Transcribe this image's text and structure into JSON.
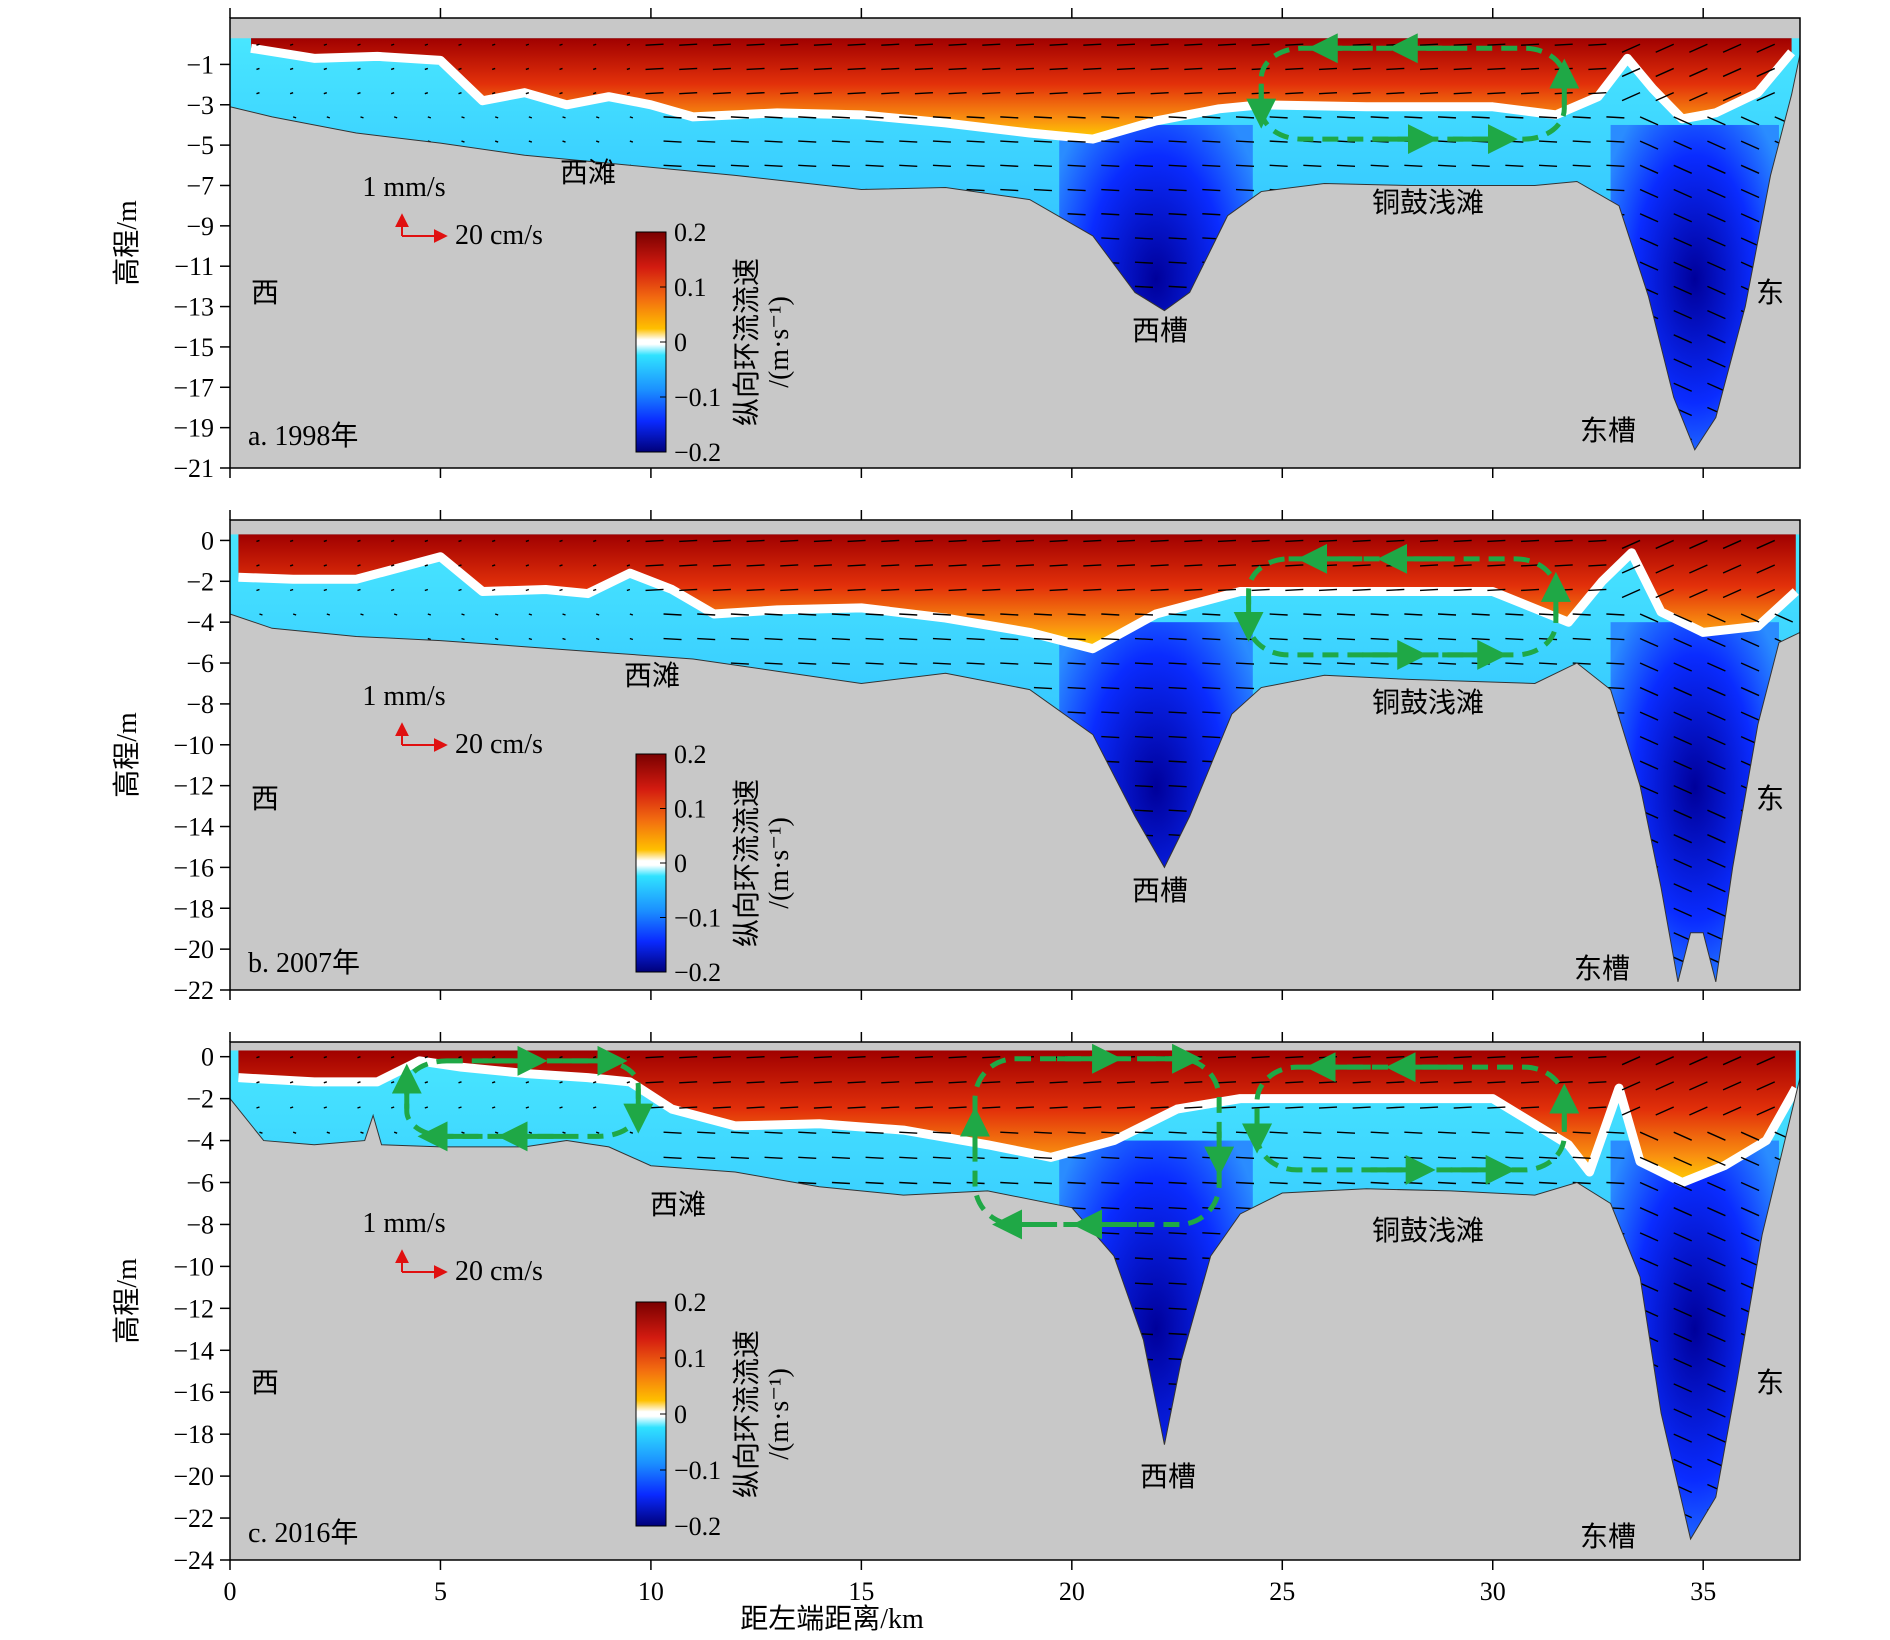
{
  "chart_data": [
    {
      "type": "contour",
      "panel_label": "a. 1998年",
      "ylabel": "高程/m",
      "xlabel": "",
      "xlim": [
        0,
        37.3
      ],
      "ylim": [
        -21,
        1.3
      ],
      "yticks": [
        -1,
        -3,
        -5,
        -7,
        -9,
        -11,
        -13,
        -15,
        -17,
        -19,
        -21
      ],
      "xticks": [
        0,
        5,
        10,
        15,
        20,
        25,
        30,
        35
      ],
      "colorbar": {
        "label": "纵向环流流速\n/(m·s⁻¹)",
        "range": [
          -0.2,
          0.2
        ],
        "ticks": [
          "0.2",
          "0.1",
          "0",
          "−0.1",
          "−0.2"
        ]
      },
      "vector_scale": {
        "vertical": "1 mm/s",
        "horizontal": "20 cm/s"
      },
      "annotations": {
        "west": "西",
        "east": "东",
        "west_shoal": "西滩",
        "west_channel": "西槽",
        "tonggu_shoal": "铜鼓浅滩",
        "east_channel": "东槽"
      },
      "bed_profile": [
        [
          0,
          -3.1
        ],
        [
          1,
          -3.6
        ],
        [
          3,
          -4.4
        ],
        [
          5,
          -4.9
        ],
        [
          7,
          -5.5
        ],
        [
          9,
          -5.9
        ],
        [
          12,
          -6.5
        ],
        [
          15,
          -7.2
        ],
        [
          17,
          -7.1
        ],
        [
          19,
          -7.7
        ],
        [
          20.5,
          -9.5
        ],
        [
          21.5,
          -12.3
        ],
        [
          22.2,
          -13.2
        ],
        [
          22.8,
          -12.3
        ],
        [
          23.7,
          -8.5
        ],
        [
          24.5,
          -7.3
        ],
        [
          26,
          -6.9
        ],
        [
          28,
          -7.0
        ],
        [
          31,
          -7.0
        ],
        [
          32,
          -6.8
        ],
        [
          33,
          -8.0
        ],
        [
          33.7,
          -12.5
        ],
        [
          34.3,
          -17.5
        ],
        [
          34.8,
          -20.1
        ],
        [
          35.3,
          -18.5
        ],
        [
          36.0,
          -13.0
        ],
        [
          36.6,
          -6.5
        ],
        [
          37.1,
          -2.5
        ],
        [
          37.3,
          -0.5
        ]
      ],
      "zero_line": [
        [
          0.5,
          -0.2
        ],
        [
          2,
          -0.7
        ],
        [
          3.5,
          -0.6
        ],
        [
          5,
          -0.8
        ],
        [
          6,
          -2.8
        ],
        [
          7,
          -2.4
        ],
        [
          8,
          -3.0
        ],
        [
          9,
          -2.6
        ],
        [
          10,
          -3.0
        ],
        [
          11,
          -3.6
        ],
        [
          13,
          -3.4
        ],
        [
          15,
          -3.5
        ],
        [
          17,
          -3.9
        ],
        [
          19,
          -4.4
        ],
        [
          20.5,
          -4.7
        ],
        [
          22,
          -3.8
        ],
        [
          23.5,
          -3.2
        ],
        [
          24.5,
          -3.0
        ],
        [
          27,
          -3.1
        ],
        [
          30,
          -3.1
        ],
        [
          31.5,
          -3.5
        ],
        [
          32.5,
          -2.6
        ],
        [
          33.2,
          -0.7
        ],
        [
          33.8,
          -2.2
        ],
        [
          34.5,
          -3.7
        ],
        [
          35.3,
          -3.4
        ],
        [
          36.3,
          -2.4
        ],
        [
          37.1,
          -0.4
        ]
      ],
      "circulation_cells": [
        {
          "x": [
            24.5,
            31.7
          ],
          "y": [
            -0.2,
            -4.7
          ],
          "direction": "counterclockwise"
        }
      ]
    },
    {
      "type": "contour",
      "panel_label": "b. 2007年",
      "ylabel": "高程/m",
      "xlabel": "",
      "xlim": [
        0,
        37.3
      ],
      "ylim": [
        -22,
        1
      ],
      "yticks": [
        0,
        -2,
        -4,
        -6,
        -8,
        -10,
        -12,
        -14,
        -16,
        -18,
        -20,
        -22
      ],
      "xticks": [
        0,
        5,
        10,
        15,
        20,
        25,
        30,
        35
      ],
      "colorbar": {
        "label": "纵向环流流速\n/(m·s⁻¹)",
        "range": [
          -0.2,
          0.2
        ],
        "ticks": [
          "0.2",
          "0.1",
          "0",
          "−0.1",
          "−0.2"
        ]
      },
      "vector_scale": {
        "vertical": "1 mm/s",
        "horizontal": "20 cm/s"
      },
      "annotations": {
        "west": "西",
        "east": "东",
        "west_shoal": "西滩",
        "west_channel": "西槽",
        "tonggu_shoal": "铜鼓浅滩",
        "east_channel": "东槽"
      },
      "bed_profile": [
        [
          0,
          -3.6
        ],
        [
          1,
          -4.3
        ],
        [
          3,
          -4.7
        ],
        [
          5,
          -4.9
        ],
        [
          7,
          -5.2
        ],
        [
          9,
          -5.5
        ],
        [
          11,
          -5.8
        ],
        [
          13,
          -6.4
        ],
        [
          15,
          -7.0
        ],
        [
          17,
          -6.5
        ],
        [
          19,
          -7.3
        ],
        [
          20.5,
          -9.5
        ],
        [
          21.5,
          -13.5
        ],
        [
          22.2,
          -16.0
        ],
        [
          22.8,
          -13.5
        ],
        [
          23.8,
          -8.5
        ],
        [
          24.5,
          -7.2
        ],
        [
          26,
          -6.6
        ],
        [
          28,
          -6.8
        ],
        [
          31,
          -7.0
        ],
        [
          32,
          -6.0
        ],
        [
          32.8,
          -7.3
        ],
        [
          33.5,
          -12.0
        ],
        [
          34.0,
          -17.0
        ],
        [
          34.4,
          -21.6
        ],
        [
          34.7,
          -19.2
        ],
        [
          35.0,
          -19.2
        ],
        [
          35.3,
          -21.6
        ],
        [
          35.7,
          -16.0
        ],
        [
          36.3,
          -9.0
        ],
        [
          36.8,
          -5.0
        ],
        [
          37.3,
          -4.5
        ]
      ],
      "zero_line": [
        [
          0.2,
          -1.8
        ],
        [
          1.5,
          -1.9
        ],
        [
          3,
          -1.9
        ],
        [
          5,
          -0.8
        ],
        [
          6,
          -2.5
        ],
        [
          7.5,
          -2.4
        ],
        [
          8.5,
          -2.6
        ],
        [
          9.5,
          -1.6
        ],
        [
          10.5,
          -2.4
        ],
        [
          11.5,
          -3.6
        ],
        [
          13,
          -3.4
        ],
        [
          15,
          -3.3
        ],
        [
          17,
          -3.8
        ],
        [
          19,
          -4.5
        ],
        [
          20.5,
          -5.3
        ],
        [
          22,
          -3.6
        ],
        [
          24,
          -2.5
        ],
        [
          27,
          -2.5
        ],
        [
          30,
          -2.5
        ],
        [
          31.8,
          -4.0
        ],
        [
          32.6,
          -2.0
        ],
        [
          33.3,
          -0.6
        ],
        [
          34.0,
          -3.5
        ],
        [
          35.0,
          -4.5
        ],
        [
          36.3,
          -4.2
        ],
        [
          37.2,
          -2.5
        ]
      ],
      "circulation_cells": [
        {
          "x": [
            24.2,
            31.5
          ],
          "y": [
            -0.9,
            -5.6
          ],
          "direction": "counterclockwise"
        }
      ]
    },
    {
      "type": "contour",
      "panel_label": "c. 2016年",
      "ylabel": "高程/m",
      "xlabel": "距左端距离/km",
      "xlim": [
        0,
        37.3
      ],
      "ylim": [
        -24,
        0.7
      ],
      "yticks": [
        0,
        -2,
        -4,
        -6,
        -8,
        -10,
        -12,
        -14,
        -16,
        -18,
        -20,
        -22,
        -24
      ],
      "xticks": [
        0,
        5,
        10,
        15,
        20,
        25,
        30,
        35
      ],
      "colorbar": {
        "label": "纵向环流流速\n/(m·s⁻¹)",
        "range": [
          -0.2,
          0.2
        ],
        "ticks": [
          "0.2",
          "0.1",
          "0",
          "−0.1",
          "−0.2"
        ]
      },
      "vector_scale": {
        "vertical": "1 mm/s",
        "horizontal": "20 cm/s"
      },
      "annotations": {
        "west": "西",
        "east": "东",
        "west_shoal": "西滩",
        "west_channel": "西槽",
        "tonggu_shoal": "铜鼓浅滩",
        "east_channel": "东槽"
      },
      "bed_profile": [
        [
          0,
          -2.0
        ],
        [
          0.8,
          -4.0
        ],
        [
          2,
          -4.2
        ],
        [
          3.2,
          -4.0
        ],
        [
          3.4,
          -2.8
        ],
        [
          3.6,
          -4.2
        ],
        [
          5,
          -4.3
        ],
        [
          7,
          -4.3
        ],
        [
          8,
          -4.0
        ],
        [
          9,
          -4.3
        ],
        [
          10,
          -5.2
        ],
        [
          12,
          -5.5
        ],
        [
          14,
          -6.2
        ],
        [
          16,
          -6.6
        ],
        [
          18,
          -6.4
        ],
        [
          20,
          -7.2
        ],
        [
          21,
          -9.5
        ],
        [
          21.7,
          -13.5
        ],
        [
          22.2,
          -18.5
        ],
        [
          22.6,
          -14.5
        ],
        [
          23.3,
          -9.5
        ],
        [
          24.0,
          -7.5
        ],
        [
          25,
          -6.5
        ],
        [
          27,
          -6.3
        ],
        [
          29,
          -6.4
        ],
        [
          31,
          -6.6
        ],
        [
          32,
          -6.0
        ],
        [
          32.8,
          -7.0
        ],
        [
          33.5,
          -10.5
        ],
        [
          34.0,
          -17.0
        ],
        [
          34.7,
          -23.0
        ],
        [
          35.3,
          -21.0
        ],
        [
          35.8,
          -15.5
        ],
        [
          36.4,
          -8.5
        ],
        [
          37.0,
          -3.5
        ],
        [
          37.3,
          -1.0
        ]
      ],
      "zero_line": [
        [
          0.2,
          -1.0
        ],
        [
          2,
          -1.2
        ],
        [
          3.5,
          -1.2
        ],
        [
          4.5,
          -0.2
        ],
        [
          5.5,
          -0.5
        ],
        [
          7,
          -0.8
        ],
        [
          8.5,
          -1.0
        ],
        [
          9.5,
          -1.2
        ],
        [
          10.5,
          -2.5
        ],
        [
          12,
          -3.3
        ],
        [
          14,
          -3.2
        ],
        [
          16,
          -3.5
        ],
        [
          18,
          -4.2
        ],
        [
          19.5,
          -4.8
        ],
        [
          21,
          -4.0
        ],
        [
          22.5,
          -2.5
        ],
        [
          24,
          -2.0
        ],
        [
          26,
          -2.0
        ],
        [
          28,
          -2.0
        ],
        [
          30,
          -2.0
        ],
        [
          31.8,
          -4.2
        ],
        [
          32.3,
          -5.5
        ],
        [
          33.0,
          -1.5
        ],
        [
          33.5,
          -5.0
        ],
        [
          34.5,
          -6.0
        ],
        [
          35.5,
          -5.2
        ],
        [
          36.5,
          -4.0
        ],
        [
          37.2,
          -1.5
        ]
      ],
      "circulation_cells": [
        {
          "x": [
            4.2,
            9.7
          ],
          "y": [
            -0.2,
            -3.8
          ],
          "direction": "clockwise"
        },
        {
          "x": [
            17.7,
            23.5
          ],
          "y": [
            -0.1,
            -8.0
          ],
          "direction": "clockwise"
        },
        {
          "x": [
            24.4,
            31.7
          ],
          "y": [
            -0.5,
            -5.4
          ],
          "direction": "counterclockwise"
        }
      ]
    }
  ]
}
